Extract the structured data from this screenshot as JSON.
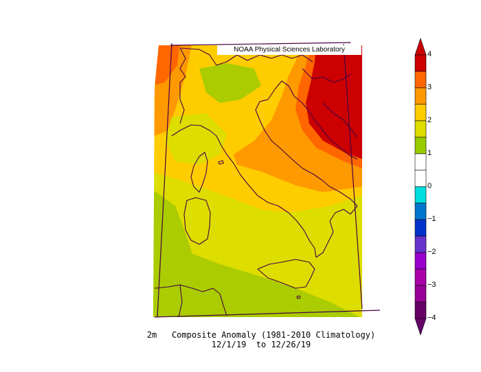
{
  "credit": "NOAA Physical Sciences Laboratory",
  "caption": {
    "variable": "2m",
    "title": "Composite Anomaly (1981-2010 Climatology)",
    "dates": "12/1/19  to 12/26/19"
  },
  "colorbar": {
    "ticks": [
      "4",
      "3",
      "2",
      "1",
      "0",
      "−1",
      "−2",
      "−3",
      "−4"
    ],
    "colors": {
      "gt4": "#cc0000",
      "3_4": "#ff6600",
      "2_3": "#ff9900",
      "1.5_2": "#ffcc00",
      "1_1.5": "#dddd00",
      "0.5_1": "#99cc00",
      "0_0.5": "#ffffff",
      "-0.5_0": "#ffffff",
      "-1_-0.5": "#00dddd",
      "-1.5_-1": "#0077cc",
      "-2_-1.5": "#0033cc",
      "-2.5_-2": "#6633cc",
      "-3_-2.5": "#9900cc",
      "-3.5_-3": "#aa00aa",
      "-4_-3.5": "#990099",
      "lt-4": "#660066"
    },
    "arrow_top": "#cc0000",
    "arrow_bottom": "#660066"
  },
  "map_colors": {
    "orange": "#ff9900",
    "dark_orange": "#ff6600",
    "red": "#cc0000",
    "yellow": "#ffcc00",
    "yellow_green": "#dddd00",
    "green": "#aacc00",
    "border": "#440044"
  }
}
